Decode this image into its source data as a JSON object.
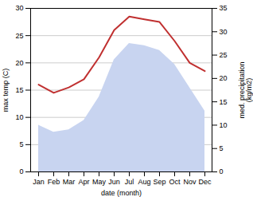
{
  "chart_data": {
    "type": "combo",
    "categories": [
      "Jan",
      "Feb",
      "Mar",
      "Apr",
      "May",
      "Jun",
      "Jul",
      "Aug",
      "Sep",
      "Oct",
      "Nov",
      "Dec"
    ],
    "xlabel": "date (month)",
    "ylabel": "max temp (C)",
    "y2label": "med. precipitation\n(kg/m2)",
    "ylim": [
      0,
      30
    ],
    "yticks": [
      0,
      5,
      10,
      15,
      20,
      25,
      30
    ],
    "y2lim": [
      0,
      35
    ],
    "y2ticks": [
      0,
      5,
      10,
      15,
      20,
      25,
      30,
      35
    ],
    "grid": true,
    "series": [
      {
        "type": "area",
        "axis": "y2",
        "color": "#c8d4f0",
        "values": [
          10,
          8.5,
          9,
          11,
          16,
          24,
          27.5,
          27,
          26,
          23,
          18,
          13
        ]
      },
      {
        "type": "line",
        "color": "#c03030",
        "values": [
          16,
          14.5,
          15.5,
          17,
          21,
          26,
          28.5,
          28,
          27.5,
          24,
          20,
          18.5
        ]
      }
    ]
  }
}
